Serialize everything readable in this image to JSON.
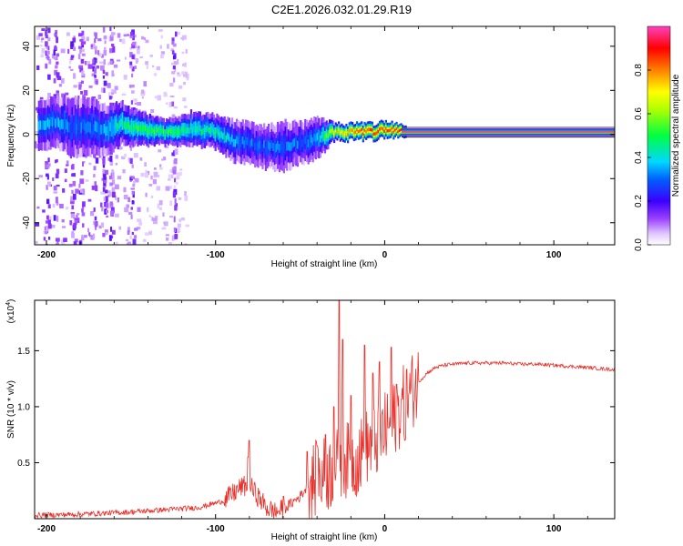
{
  "title": "C2E1.2026.032.01.29.R19",
  "chart_data": [
    {
      "type": "heatmap",
      "xlabel": "Height of straight line (km)",
      "ylabel": "Frequency (Hz)",
      "xlim": [
        -207,
        136
      ],
      "ylim": [
        -50,
        49
      ],
      "x_ticks": [
        -200,
        -100,
        0,
        100
      ],
      "x_tick_labels": [
        "-200",
        "-100",
        "0",
        "100"
      ],
      "y_ticks": [
        -40,
        -20,
        0,
        20,
        40
      ],
      "y_tick_labels": [
        "-40",
        "-20",
        "0",
        "20",
        "40"
      ],
      "colorbar": {
        "label": "Normalized spectral amplitude",
        "range": [
          0,
          1
        ],
        "ticks": [
          0.0,
          0.2,
          0.4,
          0.6,
          0.8
        ],
        "tick_labels": [
          "0.0",
          "0.2",
          "0.4",
          "0.6",
          "0.8"
        ]
      },
      "ridge": {
        "x": [
          -203,
          -195,
          -185,
          -175,
          -165,
          -155,
          -145,
          -130,
          -115,
          -100,
          -90,
          -80,
          -70,
          -60,
          -50,
          -40,
          -30,
          -20,
          -10,
          0,
          10,
          136
        ],
        "frequency": [
          5,
          6,
          3,
          4,
          2,
          5,
          2,
          1,
          3,
          1,
          -3,
          -4,
          -6,
          -5,
          -4,
          -2,
          1,
          1,
          1,
          2,
          1,
          1
        ],
        "width": [
          6,
          6,
          7,
          7,
          6,
          5,
          4,
          3,
          4,
          4,
          5,
          5,
          5,
          6,
          5,
          5,
          2,
          2,
          2,
          2,
          1.5,
          1.5
        ],
        "amplitude": [
          0.35,
          0.35,
          0.3,
          0.3,
          0.35,
          0.45,
          0.5,
          0.5,
          0.45,
          0.45,
          0.35,
          0.3,
          0.3,
          0.3,
          0.3,
          0.35,
          0.7,
          0.8,
          0.85,
          0.85,
          0.9,
          0.95
        ]
      }
    },
    {
      "type": "line",
      "xlabel": "Height of straight line (km)",
      "ylabel": "SNR (10 * v/v)",
      "multiplier_label": "(x10",
      "multiplier_exponent": "4",
      "multiplier_close": ")",
      "xlim": [
        -207,
        136
      ],
      "ylim": [
        0,
        1.95
      ],
      "x_ticks": [
        -200,
        -100,
        0,
        100
      ],
      "x_tick_labels": [
        "-200",
        "-100",
        "0",
        "100"
      ],
      "y_ticks": [
        0.5,
        1.0,
        1.5
      ],
      "y_tick_labels": [
        "0.5",
        "1.0",
        "1.5"
      ],
      "color": "#e8302a",
      "baseline": {
        "x": [
          -207,
          -180,
          -150,
          -130,
          -110,
          -95,
          -90,
          -85,
          -80,
          -75,
          -70,
          -65,
          -60,
          -55,
          -50,
          -45,
          -40,
          -35,
          -30,
          -25,
          -20,
          -15,
          -10,
          -5,
          0,
          5,
          10,
          15,
          20,
          25,
          30,
          35,
          40,
          50,
          60,
          70,
          80,
          90,
          100,
          110,
          120,
          136
        ],
        "y": [
          0.03,
          0.04,
          0.06,
          0.08,
          0.1,
          0.16,
          0.22,
          0.28,
          0.3,
          0.2,
          0.1,
          0.06,
          0.08,
          0.14,
          0.2,
          0.3,
          0.36,
          0.4,
          0.42,
          0.55,
          0.5,
          0.55,
          0.65,
          0.7,
          0.78,
          0.88,
          1.0,
          1.12,
          1.22,
          1.3,
          1.35,
          1.37,
          1.38,
          1.39,
          1.39,
          1.39,
          1.38,
          1.38,
          1.37,
          1.36,
          1.35,
          1.33
        ]
      },
      "spikes": {
        "x": [
          -81,
          -80,
          -60,
          -46,
          -40,
          -35,
          -30,
          -27,
          -25,
          -20,
          -12,
          -7,
          -3,
          4,
          7,
          12
        ],
        "y": [
          0.55,
          0.7,
          0.2,
          0.6,
          0.65,
          0.75,
          1.0,
          1.95,
          1.6,
          1.1,
          1.55,
          1.3,
          1.4,
          1.53,
          1.2,
          0.7
        ]
      }
    }
  ]
}
